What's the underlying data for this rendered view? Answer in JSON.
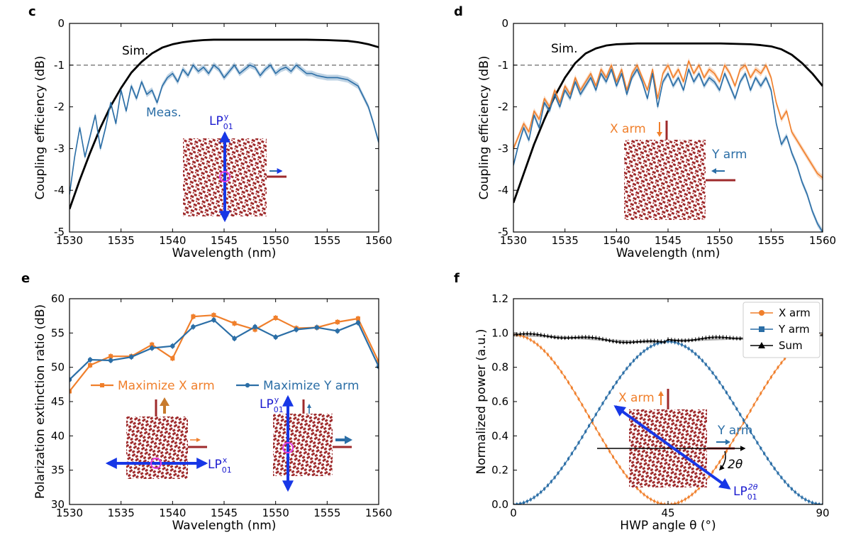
{
  "colors": {
    "orange": "#f07f2b",
    "blue": "#2b6ea6",
    "black": "#000000",
    "gray": "#777777",
    "arrow_blue": "#1737e6",
    "structure": "#9e2a2b",
    "magenta": "#e040e0",
    "lp_blue": "#1a1acf"
  },
  "chart_data": [
    {
      "panel": "c",
      "type": "line",
      "xlabel": "Wavelength (nm)",
      "ylabel": "Coupling efficiency (dB)",
      "xlim": [
        1530,
        1560
      ],
      "ylim": [
        -5,
        0
      ],
      "xticks": [
        1530,
        1535,
        1540,
        1545,
        1550,
        1555,
        1560
      ],
      "yticks": [
        -5,
        -4,
        -3,
        -2,
        -1,
        0
      ],
      "reference_line": -1,
      "series": [
        {
          "name": "Sim.",
          "color": "#000000",
          "x": [
            1530,
            1531,
            1532,
            1533,
            1534,
            1535,
            1536,
            1537,
            1538,
            1539,
            1540,
            1541,
            1542,
            1543,
            1544,
            1546,
            1550,
            1553,
            1555,
            1557,
            1558,
            1559,
            1560
          ],
          "y": [
            -4.45,
            -3.75,
            -3.1,
            -2.5,
            -1.98,
            -1.55,
            -1.18,
            -0.92,
            -0.72,
            -0.58,
            -0.5,
            -0.45,
            -0.42,
            -0.4,
            -0.39,
            -0.39,
            -0.39,
            -0.39,
            -0.4,
            -0.42,
            -0.45,
            -0.5,
            -0.57
          ]
        },
        {
          "name": "Meas.",
          "color": "#2b6ea6",
          "x": [
            1530,
            1530.5,
            1531,
            1531.5,
            1532,
            1532.5,
            1533,
            1533.5,
            1534,
            1534.5,
            1535,
            1535.5,
            1536,
            1536.5,
            1537,
            1537.5,
            1538,
            1538.5,
            1539,
            1539.5,
            1540,
            1540.5,
            1541,
            1541.5,
            1542,
            1542.5,
            1543,
            1543.5,
            1544,
            1544.5,
            1545,
            1545.5,
            1546,
            1546.5,
            1547,
            1547.5,
            1548,
            1548.5,
            1549,
            1549.5,
            1550,
            1550.5,
            1551,
            1551.5,
            1552,
            1552.5,
            1553,
            1553.5,
            1554,
            1555,
            1556,
            1557,
            1558,
            1558.5,
            1559,
            1559.5,
            1560
          ],
          "y": [
            -4.1,
            -3.2,
            -2.5,
            -3.2,
            -2.7,
            -2.2,
            -3.0,
            -2.5,
            -1.9,
            -2.4,
            -1.6,
            -2.1,
            -1.5,
            -1.8,
            -1.4,
            -1.7,
            -1.6,
            -1.9,
            -1.5,
            -1.3,
            -1.2,
            -1.4,
            -1.1,
            -1.25,
            -1.0,
            -1.15,
            -1.05,
            -1.2,
            -1.0,
            -1.1,
            -1.3,
            -1.15,
            -1.0,
            -1.2,
            -1.1,
            -1.0,
            -1.05,
            -1.25,
            -1.1,
            -1.0,
            -1.2,
            -1.1,
            -1.05,
            -1.15,
            -1.0,
            -1.1,
            -1.2,
            -1.2,
            -1.25,
            -1.3,
            -1.3,
            -1.35,
            -1.5,
            -1.75,
            -2.0,
            -2.4,
            -2.85
          ]
        }
      ],
      "annotations": {
        "sim_label": "Sim.",
        "meas_label": "Meas.",
        "lp_label": "LP",
        "lp_sub": "01",
        "lp_sup": "y"
      }
    },
    {
      "panel": "d",
      "type": "line",
      "xlabel": "Wavelength (nm)",
      "ylabel": "Coupling efficiency (dB)",
      "xlim": [
        1530,
        1560
      ],
      "ylim": [
        -5,
        0
      ],
      "xticks": [
        1530,
        1535,
        1540,
        1545,
        1550,
        1555,
        1560
      ],
      "yticks": [
        -5,
        -4,
        -3,
        -2,
        -1,
        0
      ],
      "reference_line": -1,
      "series": [
        {
          "name": "Sim.",
          "color": "#000000",
          "x": [
            1530,
            1531,
            1532,
            1533,
            1534,
            1535,
            1536,
            1537,
            1538,
            1539,
            1540,
            1542,
            1545,
            1550,
            1553,
            1554,
            1555,
            1556,
            1557,
            1558,
            1559,
            1560
          ],
          "y": [
            -4.3,
            -3.6,
            -2.9,
            -2.3,
            -1.75,
            -1.3,
            -0.95,
            -0.72,
            -0.6,
            -0.53,
            -0.5,
            -0.48,
            -0.48,
            -0.48,
            -0.5,
            -0.52,
            -0.55,
            -0.62,
            -0.75,
            -0.95,
            -1.2,
            -1.5
          ]
        },
        {
          "name": "X arm",
          "color": "#f07f2b",
          "x": [
            1530,
            1530.5,
            1531,
            1531.5,
            1532,
            1532.5,
            1533,
            1533.5,
            1534,
            1534.5,
            1535,
            1535.5,
            1536,
            1536.5,
            1537,
            1537.5,
            1538,
            1538.5,
            1539,
            1539.5,
            1540,
            1540.5,
            1541,
            1541.5,
            1542,
            1542.5,
            1543,
            1543.5,
            1544,
            1544.5,
            1545,
            1545.5,
            1546,
            1546.5,
            1547,
            1547.5,
            1548,
            1548.5,
            1549,
            1549.5,
            1550,
            1550.5,
            1551,
            1551.5,
            1552,
            1552.5,
            1553,
            1553.5,
            1554,
            1554.5,
            1555,
            1555.5,
            1556,
            1556.5,
            1557,
            1557.5,
            1558,
            1558.5,
            1559,
            1559.5,
            1560
          ],
          "y": [
            -3.0,
            -2.7,
            -2.4,
            -2.6,
            -2.1,
            -2.3,
            -1.8,
            -2.0,
            -1.6,
            -1.9,
            -1.5,
            -1.7,
            -1.3,
            -1.6,
            -1.4,
            -1.2,
            -1.5,
            -1.1,
            -1.3,
            -1.0,
            -1.4,
            -1.1,
            -1.6,
            -1.2,
            -1.0,
            -1.3,
            -1.6,
            -1.1,
            -1.8,
            -1.2,
            -1.0,
            -1.3,
            -1.1,
            -1.4,
            -0.9,
            -1.2,
            -1.0,
            -1.3,
            -1.1,
            -1.2,
            -1.4,
            -1.0,
            -1.2,
            -1.5,
            -1.1,
            -1.0,
            -1.3,
            -1.1,
            -1.2,
            -1.0,
            -1.3,
            -1.9,
            -2.3,
            -2.1,
            -2.6,
            -2.8,
            -3.0,
            -3.2,
            -3.4,
            -3.6,
            -3.7
          ]
        },
        {
          "name": "Y arm",
          "color": "#2b6ea6",
          "x": [
            1530,
            1530.5,
            1531,
            1531.5,
            1532,
            1532.5,
            1533,
            1533.5,
            1534,
            1534.5,
            1535,
            1535.5,
            1536,
            1536.5,
            1537,
            1537.5,
            1538,
            1538.5,
            1539,
            1539.5,
            1540,
            1540.5,
            1541,
            1541.5,
            1542,
            1542.5,
            1543,
            1543.5,
            1544,
            1544.5,
            1545,
            1545.5,
            1546,
            1546.5,
            1547,
            1547.5,
            1548,
            1548.5,
            1549,
            1549.5,
            1550,
            1550.5,
            1551,
            1551.5,
            1552,
            1552.5,
            1553,
            1553.5,
            1554,
            1554.5,
            1555,
            1555.5,
            1556,
            1556.5,
            1557,
            1557.5,
            1558,
            1558.5,
            1559,
            1559.5,
            1560
          ],
          "y": [
            -3.4,
            -2.9,
            -2.5,
            -2.8,
            -2.2,
            -2.5,
            -1.9,
            -2.1,
            -1.7,
            -2.0,
            -1.6,
            -1.8,
            -1.4,
            -1.7,
            -1.5,
            -1.3,
            -1.6,
            -1.2,
            -1.4,
            -1.1,
            -1.5,
            -1.2,
            -1.7,
            -1.3,
            -1.1,
            -1.4,
            -1.8,
            -1.2,
            -2.0,
            -1.4,
            -1.2,
            -1.5,
            -1.3,
            -1.6,
            -1.1,
            -1.4,
            -1.2,
            -1.5,
            -1.3,
            -1.4,
            -1.6,
            -1.2,
            -1.5,
            -1.8,
            -1.4,
            -1.2,
            -1.6,
            -1.3,
            -1.5,
            -1.3,
            -1.6,
            -2.4,
            -2.9,
            -2.7,
            -3.1,
            -3.4,
            -3.8,
            -4.1,
            -4.5,
            -4.8,
            -5.0
          ]
        }
      ],
      "annotations": {
        "sim_label": "Sim.",
        "x_arm_label": "X arm",
        "y_arm_label": "Y arm"
      }
    },
    {
      "panel": "e",
      "type": "line",
      "xlabel": "Wavelength (nm)",
      "ylabel": "Polarization extinction ratio (dB)",
      "xlim": [
        1530,
        1560
      ],
      "ylim": [
        30,
        60
      ],
      "xticks": [
        1530,
        1535,
        1540,
        1545,
        1550,
        1555,
        1560
      ],
      "yticks": [
        30,
        35,
        40,
        45,
        50,
        55,
        60
      ],
      "series": [
        {
          "name": "Maximize X arm",
          "color": "#f07f2b",
          "marker": "square",
          "x": [
            1530,
            1532,
            1534,
            1536,
            1538,
            1540,
            1542,
            1544,
            1546,
            1548,
            1550,
            1552,
            1554,
            1556,
            1558,
            1560
          ],
          "y": [
            46.5,
            50.3,
            51.6,
            51.6,
            53.3,
            51.3,
            57.4,
            57.6,
            56.4,
            55.5,
            57.2,
            55.7,
            55.8,
            56.6,
            57.1,
            50.8
          ]
        },
        {
          "name": "Maximize Y arm",
          "color": "#2b6ea6",
          "marker": "circle",
          "x": [
            1530,
            1532,
            1534,
            1536,
            1538,
            1540,
            1542,
            1544,
            1546,
            1548,
            1550,
            1552,
            1554,
            1556,
            1558,
            1560
          ],
          "y": [
            48.2,
            51.1,
            51.0,
            51.5,
            52.8,
            53.1,
            55.9,
            56.9,
            54.2,
            55.9,
            54.4,
            55.5,
            55.8,
            55.3,
            56.5,
            50.1
          ]
        }
      ],
      "annotations": {
        "lp_label": "LP",
        "lp_sub": "01",
        "lp_x_sup": "x",
        "lp_y_sup": "y"
      }
    },
    {
      "panel": "f",
      "type": "line",
      "xlabel": "HWP angle θ (°)",
      "ylabel": "Normalized power (a.u.)",
      "xlim": [
        0,
        90
      ],
      "ylim": [
        0,
        1.2
      ],
      "xticks": [
        0,
        45,
        90
      ],
      "yticks": [
        0.0,
        0.2,
        0.4,
        0.6,
        0.8,
        1.0,
        1.2
      ],
      "legend": "top-right",
      "series": [
        {
          "name": "X arm",
          "color": "#f07f2b",
          "marker": "circle",
          "model": "0.99*cos^2(2θ)"
        },
        {
          "name": "Y arm",
          "color": "#2b6ea6",
          "marker": "square",
          "model": "0.95*sin^2(2θ)"
        },
        {
          "name": "Sum",
          "color": "#000000",
          "marker": "triangle",
          "model": "≈0.94–0.99"
        }
      ],
      "annotations": {
        "x_arm_label": "X arm",
        "y_arm_label": "Y arm",
        "angle_label": "2θ",
        "lp_label": "LP",
        "lp_sub": "01",
        "lp_sup": "2θ"
      }
    }
  ],
  "panels": {
    "c": "c",
    "d": "d",
    "e": "e",
    "f": "f"
  }
}
